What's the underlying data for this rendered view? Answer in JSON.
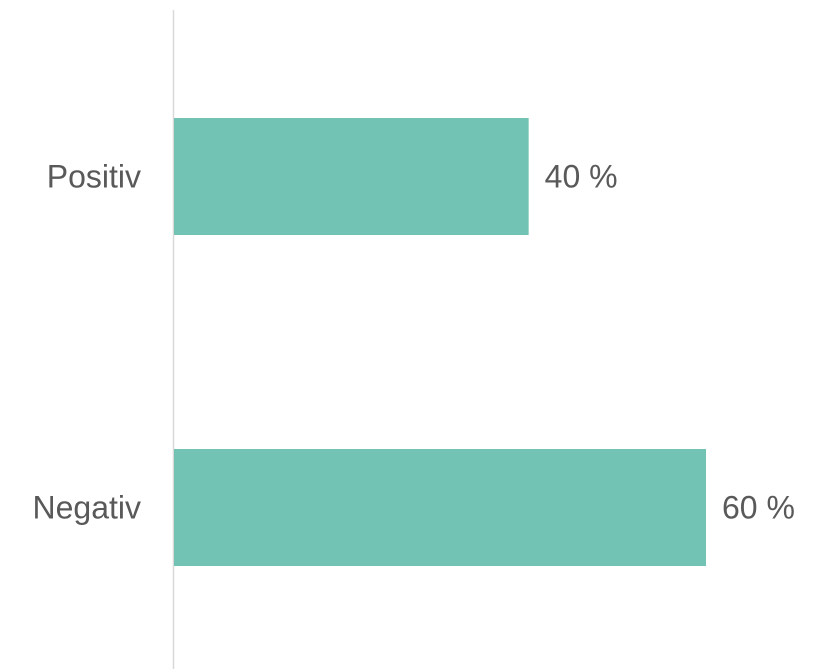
{
  "chart_data": {
    "type": "bar",
    "orientation": "horizontal",
    "categories": [
      "Positiv",
      "Negativ"
    ],
    "values": [
      40,
      60
    ],
    "value_labels": [
      "40 %",
      "60 %"
    ],
    "unit": "%",
    "xlim": [
      0,
      60
    ],
    "grid": false,
    "legend": "none",
    "title": "",
    "xlabel": "",
    "ylabel": "",
    "colors": {
      "bar": "#72c3b4",
      "axis": "#d9d9d9",
      "text": "#595959"
    }
  }
}
